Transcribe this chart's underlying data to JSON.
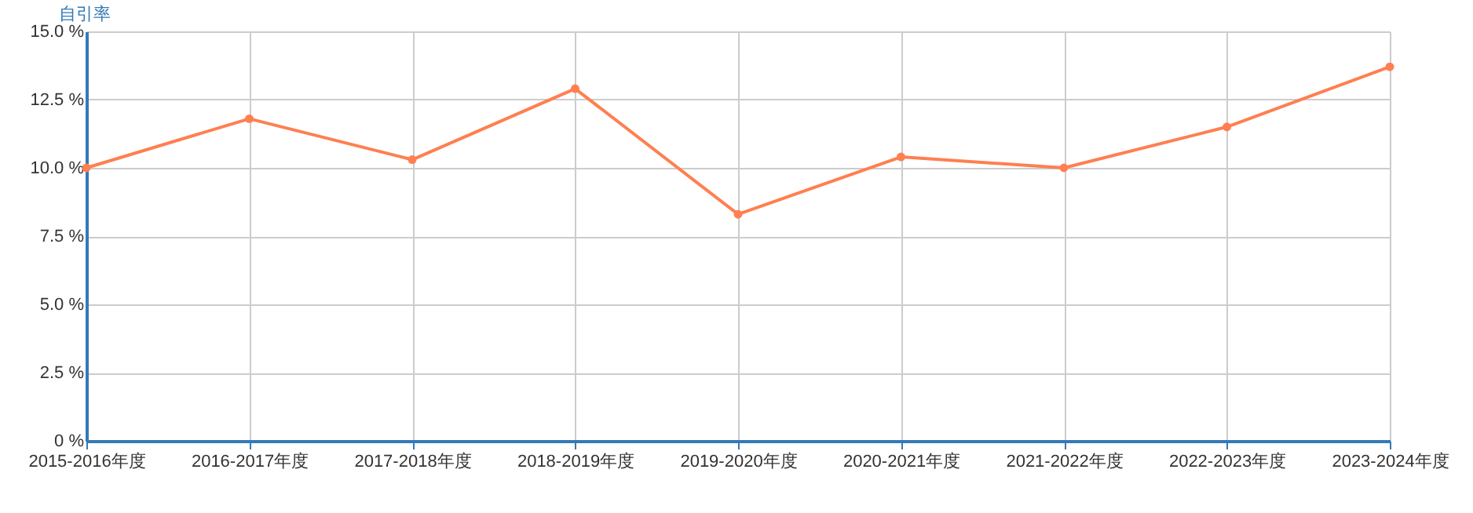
{
  "chart_data": {
    "type": "line",
    "ylabel": "自引率",
    "categories": [
      "2015-2016年度",
      "2016-2017年度",
      "2017-2018年度",
      "2018-2019年度",
      "2019-2020年度",
      "2020-2021年度",
      "2021-2022年度",
      "2022-2023年度",
      "2023-2024年度"
    ],
    "series": [
      {
        "color": "#ff7f50",
        "values": [
          10.0,
          11.8,
          10.3,
          12.9,
          8.3,
          10.4,
          10.0,
          11.5,
          13.7
        ]
      }
    ],
    "ylim": [
      0,
      15
    ],
    "yticks": [
      {
        "value": 0,
        "label": "0 %"
      },
      {
        "value": 2.5,
        "label": "2.5 %"
      },
      {
        "value": 5,
        "label": "5.0 %"
      },
      {
        "value": 7.5,
        "label": "7.5 %"
      },
      {
        "value": 10,
        "label": "10.0 %"
      },
      {
        "value": 12.5,
        "label": "12.5 %"
      },
      {
        "value": 15,
        "label": "15.0 %"
      }
    ],
    "grid": true,
    "marker": "circle",
    "line_style": "solid"
  }
}
